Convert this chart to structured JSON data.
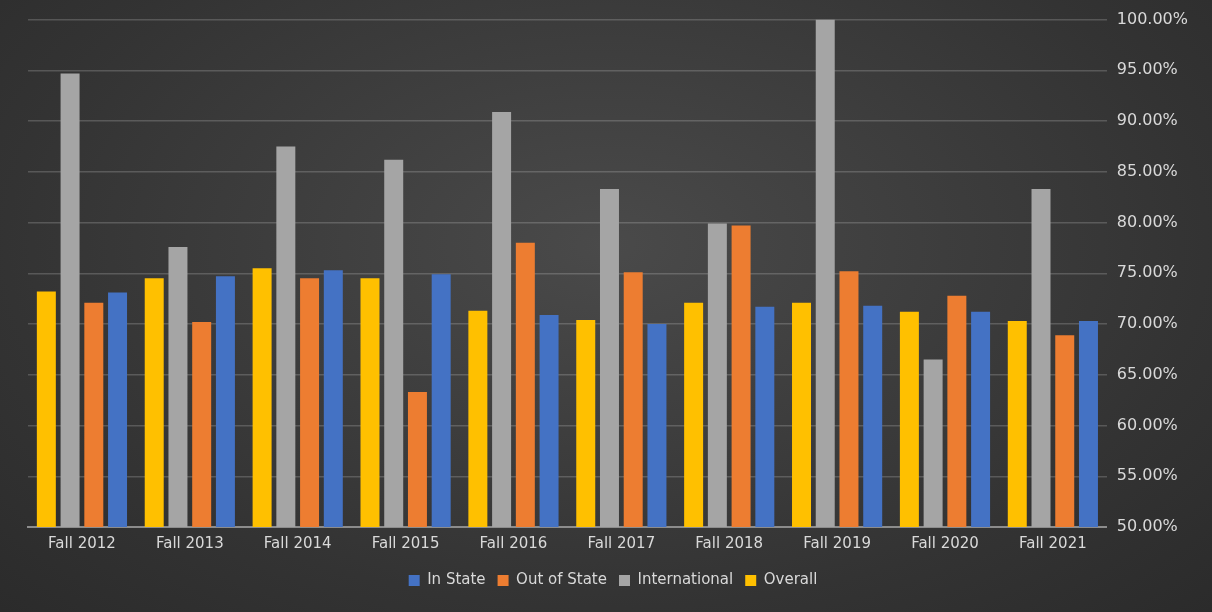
{
  "chart_data": {
    "type": "bar",
    "categories": [
      "Fall 2012",
      "Fall 2013",
      "Fall 2014",
      "Fall 2015",
      "Fall 2016",
      "Fall 2017",
      "Fall 2018",
      "Fall 2019",
      "Fall 2020",
      "Fall 2021"
    ],
    "series": [
      {
        "name": "In State",
        "color": "#4472c4",
        "values": [
          73.1,
          74.7,
          75.3,
          74.9,
          70.9,
          70.0,
          71.7,
          71.8,
          71.2,
          70.3
        ]
      },
      {
        "name": "Out of State",
        "color": "#ed7d31",
        "values": [
          72.1,
          70.2,
          74.5,
          63.3,
          78.0,
          75.1,
          79.7,
          75.2,
          72.8,
          68.9
        ]
      },
      {
        "name": "International",
        "color": "#a5a5a5",
        "values": [
          94.7,
          77.6,
          87.5,
          86.2,
          90.9,
          83.3,
          79.9,
          100.0,
          66.5,
          83.3
        ]
      },
      {
        "name": "Overall",
        "color": "#ffc000",
        "values": [
          73.2,
          74.5,
          75.5,
          74.5,
          71.3,
          70.4,
          72.1,
          72.1,
          71.2,
          70.3
        ]
      }
    ],
    "ylim": [
      50,
      100
    ],
    "yticks": [
      {
        "value": 50,
        "label": "50.00%"
      },
      {
        "value": 55,
        "label": "55.00%"
      },
      {
        "value": 60,
        "label": "60.00%"
      },
      {
        "value": 65,
        "label": "65.00%"
      },
      {
        "value": 70,
        "label": "70.00%"
      },
      {
        "value": 75,
        "label": "75.00%"
      },
      {
        "value": 80,
        "label": "80.00%"
      },
      {
        "value": 85,
        "label": "85.00%"
      },
      {
        "value": 90,
        "label": "90.00%"
      },
      {
        "value": 95,
        "label": "95.00%"
      },
      {
        "value": 100,
        "label": "100.00%"
      }
    ],
    "grid": "y",
    "legend": "bottom"
  }
}
